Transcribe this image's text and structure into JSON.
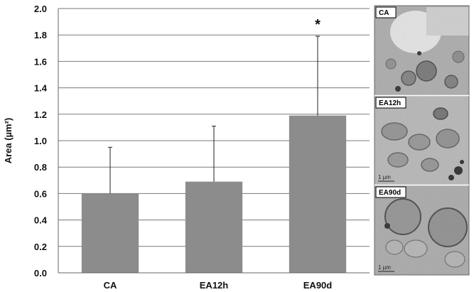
{
  "chart_data": {
    "type": "bar",
    "ylabel": "Area (µm²)",
    "ylim": [
      0,
      2.0
    ],
    "yticks": [
      "0.0",
      "0.2",
      "0.4",
      "0.6",
      "0.8",
      "1.0",
      "1.2",
      "1.4",
      "1.6",
      "1.8",
      "2.0"
    ],
    "categories": [
      "CA",
      "EA12h",
      "EA90d"
    ],
    "values": [
      0.6,
      0.69,
      1.19
    ],
    "error_upper": [
      0.95,
      1.11,
      1.79
    ],
    "significance": [
      "",
      "",
      "*"
    ],
    "grid": true,
    "bar_color": "#8c8c8c"
  },
  "micrographs": [
    {
      "label": "CA",
      "scale_bar": ""
    },
    {
      "label": "EA12h",
      "scale_bar": "1 µm"
    },
    {
      "label": "EA90d",
      "scale_bar": "1 µm"
    }
  ]
}
